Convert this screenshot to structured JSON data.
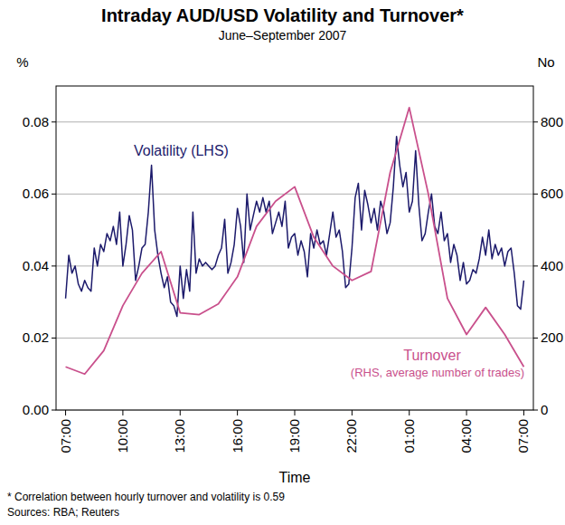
{
  "chart_data": {
    "type": "line",
    "title": "Intraday AUD/USD Volatility and Turnover*",
    "subtitle": "June–September 2007",
    "x_label": "Time",
    "y_label": "%",
    "y2_label": "No",
    "annotations": [
      "(RHS, average number of trades)",
      "*   Correlation between hourly turnover and volatility is 0.59",
      "Sources: RBA; Reuters"
    ],
    "xlim": [
      -30,
      1470
    ],
    "xticks": [
      {
        "value": 0,
        "label": "07:00"
      },
      {
        "value": 180,
        "label": "10:00"
      },
      {
        "value": 360,
        "label": "13:00"
      },
      {
        "value": 540,
        "label": "16:00"
      },
      {
        "value": 720,
        "label": "19:00"
      },
      {
        "value": 900,
        "label": "22:00"
      },
      {
        "value": 1080,
        "label": "01:00"
      },
      {
        "value": 1260,
        "label": "04:00"
      },
      {
        "value": 1440,
        "label": "07:00"
      }
    ],
    "ylim": [
      0,
      0.09
    ],
    "yticks": [
      {
        "value": 0,
        "label": "0.00"
      },
      0.02,
      0.04,
      0.06,
      0.08
    ],
    "y2lim": [
      0,
      900
    ],
    "y2ticks": [
      0,
      200,
      400,
      600,
      800
    ],
    "grid": true,
    "series": [
      {
        "name": "Volatility (LHS)",
        "color": "#1c1a6b",
        "x": [
          0,
          10,
          20,
          30,
          40,
          50,
          60,
          70,
          80,
          90,
          100,
          110,
          120,
          130,
          140,
          150,
          160,
          170,
          180,
          190,
          200,
          210,
          220,
          230,
          240,
          250,
          260,
          270,
          280,
          290,
          300,
          310,
          320,
          330,
          340,
          350,
          360,
          370,
          380,
          390,
          400,
          410,
          420,
          430,
          440,
          450,
          460,
          470,
          480,
          490,
          500,
          510,
          520,
          530,
          540,
          550,
          560,
          570,
          580,
          590,
          600,
          610,
          620,
          630,
          640,
          650,
          660,
          670,
          680,
          690,
          700,
          710,
          720,
          730,
          740,
          750,
          760,
          770,
          780,
          790,
          800,
          810,
          820,
          830,
          840,
          850,
          860,
          870,
          880,
          890,
          900,
          910,
          920,
          930,
          940,
          950,
          960,
          970,
          980,
          990,
          1000,
          1010,
          1020,
          1030,
          1040,
          1050,
          1060,
          1070,
          1080,
          1090,
          1100,
          1110,
          1120,
          1130,
          1140,
          1150,
          1160,
          1170,
          1180,
          1190,
          1200,
          1210,
          1220,
          1230,
          1240,
          1250,
          1260,
          1270,
          1280,
          1290,
          1300,
          1310,
          1320,
          1330,
          1340,
          1350,
          1360,
          1370,
          1380,
          1390,
          1400,
          1410,
          1420,
          1430,
          1440
        ],
        "values": [
          0.031,
          0.043,
          0.038,
          0.04,
          0.035,
          0.033,
          0.036,
          0.034,
          0.033,
          0.045,
          0.04,
          0.046,
          0.044,
          0.049,
          0.047,
          0.051,
          0.046,
          0.055,
          0.04,
          0.046,
          0.054,
          0.05,
          0.036,
          0.04,
          0.045,
          0.046,
          0.055,
          0.068,
          0.05,
          0.043,
          0.038,
          0.034,
          0.037,
          0.03,
          0.029,
          0.026,
          0.04,
          0.031,
          0.039,
          0.033,
          0.055,
          0.038,
          0.042,
          0.04,
          0.041,
          0.04,
          0.039,
          0.04,
          0.043,
          0.045,
          0.053,
          0.038,
          0.041,
          0.046,
          0.056,
          0.051,
          0.041,
          0.06,
          0.05,
          0.054,
          0.058,
          0.055,
          0.059,
          0.055,
          0.058,
          0.049,
          0.052,
          0.055,
          0.051,
          0.058,
          0.045,
          0.048,
          0.049,
          0.043,
          0.047,
          0.044,
          0.037,
          0.049,
          0.045,
          0.05,
          0.046,
          0.047,
          0.043,
          0.049,
          0.055,
          0.048,
          0.05,
          0.044,
          0.034,
          0.035,
          0.045,
          0.059,
          0.063,
          0.05,
          0.061,
          0.057,
          0.052,
          0.056,
          0.05,
          0.058,
          0.055,
          0.049,
          0.052,
          0.062,
          0.076,
          0.068,
          0.062,
          0.066,
          0.055,
          0.058,
          0.072,
          0.057,
          0.047,
          0.049,
          0.055,
          0.06,
          0.051,
          0.049,
          0.055,
          0.047,
          0.049,
          0.041,
          0.046,
          0.043,
          0.036,
          0.041,
          0.035,
          0.036,
          0.039,
          0.038,
          0.042,
          0.048,
          0.043,
          0.05,
          0.042,
          0.046,
          0.043,
          0.045,
          0.04,
          0.044,
          0.045,
          0.038,
          0.029,
          0.028,
          0.036
        ]
      },
      {
        "name": "Turnover",
        "color": "#c9508c",
        "axis": "y2",
        "x": [
          0,
          60,
          120,
          180,
          240,
          300,
          360,
          420,
          480,
          540,
          600,
          660,
          720,
          780,
          840,
          900,
          960,
          1020,
          1080,
          1140,
          1200,
          1260,
          1320,
          1380,
          1440
        ],
        "values": [
          120,
          100,
          165,
          290,
          380,
          440,
          270,
          265,
          295,
          370,
          510,
          580,
          620,
          480,
          400,
          360,
          385,
          660,
          840,
          600,
          310,
          210,
          285,
          210,
          120
        ]
      }
    ]
  }
}
